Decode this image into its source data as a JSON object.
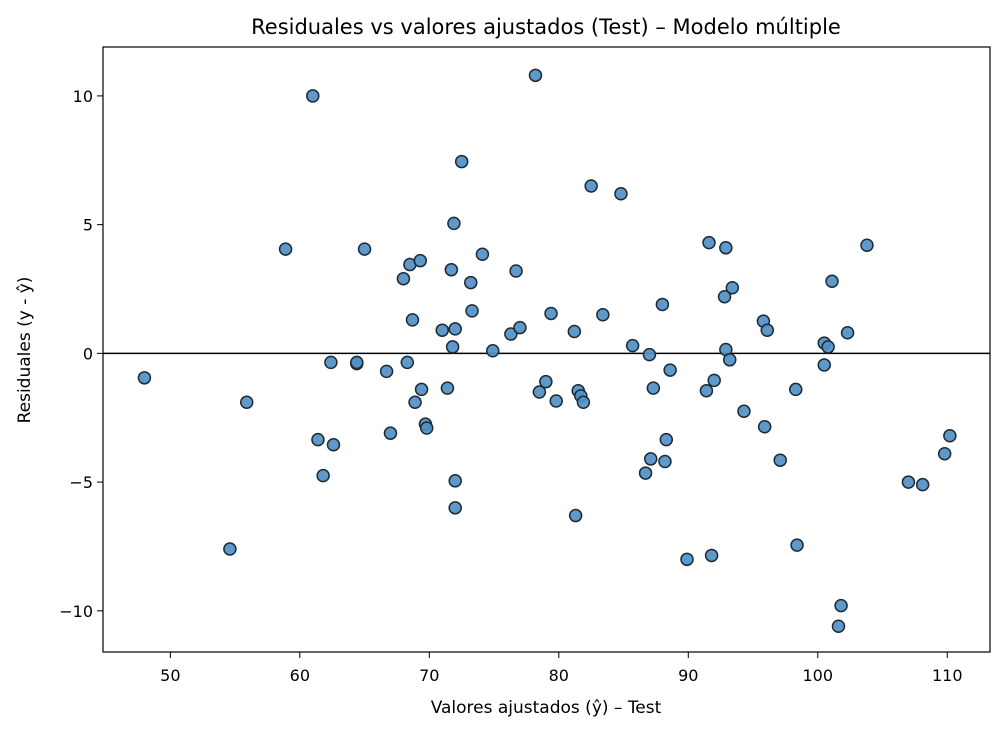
{
  "chart_data": {
    "type": "scatter",
    "title": "Residuales vs valores ajustados (Test) – Modelo múltiple",
    "xlabel": "Valores ajustados (ŷ) – Test",
    "ylabel": "Residuales (y - ŷ)",
    "xlim": [
      44.8,
      113.3
    ],
    "ylim": [
      -11.6,
      11.9
    ],
    "xticks": [
      50,
      60,
      70,
      80,
      90,
      100,
      110
    ],
    "yticks": [
      -10,
      -5,
      0,
      5,
      10
    ],
    "xtick_labels": [
      "50",
      "60",
      "70",
      "80",
      "90",
      "100",
      "110"
    ],
    "ytick_labels": [
      "−10",
      "−5",
      "0",
      "5",
      "10"
    ],
    "grid": false,
    "reference_line_y": 0,
    "point_color": "#4f90c6",
    "point_edge_color": "#1f2a33",
    "points": [
      [
        48.0,
        -0.95
      ],
      [
        54.6,
        -7.6
      ],
      [
        55.9,
        -1.9
      ],
      [
        58.9,
        4.05
      ],
      [
        61.0,
        10.0
      ],
      [
        61.4,
        -3.35
      ],
      [
        61.8,
        -4.75
      ],
      [
        62.4,
        -0.35
      ],
      [
        62.6,
        -3.55
      ],
      [
        65.0,
        4.05
      ],
      [
        64.4,
        -0.4
      ],
      [
        64.4,
        -0.35
      ],
      [
        66.7,
        -0.7
      ],
      [
        67.0,
        -3.1
      ],
      [
        68.0,
        2.9
      ],
      [
        68.3,
        -0.35
      ],
      [
        68.5,
        3.45
      ],
      [
        68.7,
        1.3
      ],
      [
        68.9,
        -1.9
      ],
      [
        69.3,
        3.6
      ],
      [
        69.4,
        -1.4
      ],
      [
        69.7,
        -2.75
      ],
      [
        69.8,
        -2.9
      ],
      [
        71.0,
        0.9
      ],
      [
        71.4,
        -1.35
      ],
      [
        71.7,
        3.25
      ],
      [
        71.8,
        0.25
      ],
      [
        71.9,
        5.05
      ],
      [
        72.0,
        0.95
      ],
      [
        72.0,
        -4.95
      ],
      [
        72.0,
        -6.0
      ],
      [
        72.5,
        7.45
      ],
      [
        73.2,
        2.75
      ],
      [
        73.3,
        1.65
      ],
      [
        74.1,
        3.85
      ],
      [
        74.9,
        0.1
      ],
      [
        76.3,
        0.75
      ],
      [
        76.7,
        3.2
      ],
      [
        77.0,
        1.0
      ],
      [
        78.2,
        10.8
      ],
      [
        78.5,
        -1.5
      ],
      [
        79.0,
        -1.1
      ],
      [
        79.4,
        1.55
      ],
      [
        79.8,
        -1.85
      ],
      [
        81.2,
        0.85
      ],
      [
        81.3,
        -6.3
      ],
      [
        81.5,
        -1.45
      ],
      [
        81.7,
        -1.65
      ],
      [
        81.9,
        -1.9
      ],
      [
        82.5,
        6.5
      ],
      [
        83.4,
        1.5
      ],
      [
        84.8,
        6.2
      ],
      [
        85.7,
        0.3
      ],
      [
        86.7,
        -4.65
      ],
      [
        87.0,
        -0.05
      ],
      [
        87.1,
        -4.1
      ],
      [
        87.3,
        -1.35
      ],
      [
        88.0,
        1.9
      ],
      [
        88.2,
        -4.2
      ],
      [
        88.3,
        -3.35
      ],
      [
        88.6,
        -0.65
      ],
      [
        89.9,
        -8.0
      ],
      [
        91.4,
        -1.45
      ],
      [
        91.6,
        4.3
      ],
      [
        91.8,
        -7.85
      ],
      [
        92.0,
        -1.05
      ],
      [
        92.8,
        2.2
      ],
      [
        92.9,
        0.15
      ],
      [
        92.9,
        4.1
      ],
      [
        93.2,
        -0.25
      ],
      [
        93.4,
        2.55
      ],
      [
        94.3,
        -2.25
      ],
      [
        95.8,
        1.25
      ],
      [
        95.9,
        -2.85
      ],
      [
        96.1,
        0.9
      ],
      [
        97.1,
        -4.15
      ],
      [
        98.3,
        -1.4
      ],
      [
        98.4,
        -7.45
      ],
      [
        100.5,
        0.4
      ],
      [
        100.5,
        -0.45
      ],
      [
        100.8,
        0.25
      ],
      [
        101.1,
        2.8
      ],
      [
        101.6,
        -10.6
      ],
      [
        101.8,
        -9.8
      ],
      [
        102.3,
        0.8
      ],
      [
        103.8,
        4.2
      ],
      [
        107.0,
        -5.0
      ],
      [
        108.1,
        -5.1
      ],
      [
        109.8,
        -3.9
      ],
      [
        110.2,
        -3.2
      ]
    ]
  }
}
